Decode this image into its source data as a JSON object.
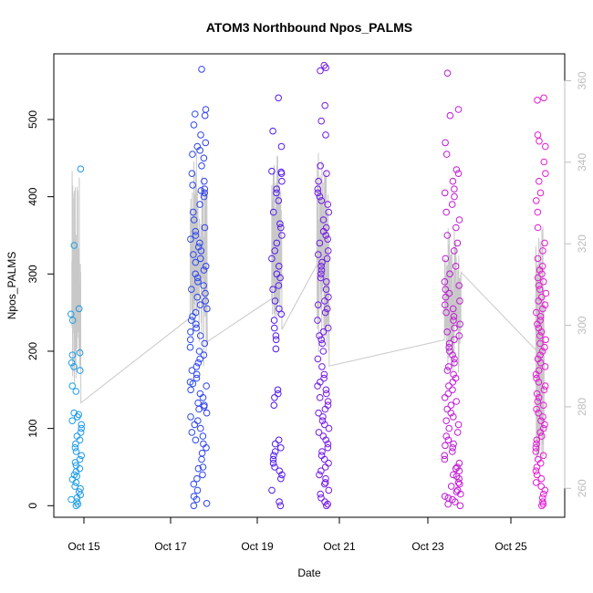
{
  "chart_data": {
    "type": "scatter",
    "title": "ATOM3 Northbound Npos_PALMS",
    "xlabel": "Date",
    "ylabel": "Npos_PALMS",
    "x_ticks": [
      "Oct 15",
      "Oct 17",
      "Oct 19",
      "Oct 21",
      "Oct 23",
      "Oct 25"
    ],
    "y_ticks": [
      0,
      100,
      200,
      300,
      400,
      500
    ],
    "ylim": [
      -15,
      585
    ],
    "y2_ticks": [
      260,
      280,
      300,
      320,
      340,
      360
    ],
    "y2lim": [
      252.9,
      366.6
    ],
    "grid": false,
    "colors": {
      "line": "#c8c8c8",
      "right_axis": "#bdbdbd",
      "axis": "#000000"
    },
    "point_color_gradient": [
      "#1a9fe8",
      "#1f5aee",
      "#4a1aee",
      "#8a1ae0",
      "#c21ad6",
      "#e61ad2"
    ],
    "point_clusters": [
      {
        "date": "Oct 14",
        "day_start": 14.7,
        "day_end": 14.95,
        "values": [
          0,
          2,
          5,
          8,
          10,
          14,
          18,
          22,
          25,
          30,
          34,
          38,
          40,
          44,
          48,
          52,
          56,
          60,
          65,
          70,
          75,
          80,
          85,
          90,
          95,
          100,
          105,
          110,
          115,
          118,
          120,
          148,
          155,
          175,
          180,
          185,
          195,
          198,
          240,
          248,
          255,
          337,
          436
        ]
      },
      {
        "date": "Oct 17",
        "day_start": 17.45,
        "day_end": 17.85,
        "values": [
          0,
          3,
          8,
          12,
          20,
          28,
          35,
          40,
          48,
          50,
          60,
          68,
          75,
          80,
          85,
          90,
          95,
          100,
          105,
          110,
          115,
          120,
          125,
          128,
          130,
          133,
          140,
          145,
          150,
          155,
          158,
          160,
          165,
          170,
          175,
          180,
          185,
          190,
          195,
          200,
          205,
          210,
          215,
          220,
          225,
          230,
          235,
          240,
          245,
          250,
          255,
          260,
          265,
          270,
          275,
          280,
          285,
          290,
          295,
          300,
          305,
          310,
          315,
          320,
          325,
          330,
          335,
          340,
          345,
          350,
          355,
          360,
          370,
          380,
          390,
          400,
          405,
          408,
          410,
          415,
          420,
          430,
          440,
          450,
          455,
          460,
          465,
          470,
          480,
          493,
          505,
          507,
          513,
          565
        ]
      },
      {
        "date": "Oct 19",
        "day_start": 19.35,
        "day_end": 19.6,
        "values": [
          0,
          5,
          20,
          35,
          40,
          45,
          50,
          55,
          60,
          65,
          70,
          75,
          80,
          85,
          130,
          140,
          145,
          150,
          203,
          215,
          220,
          230,
          240,
          248,
          255,
          265,
          280,
          285,
          295,
          300,
          310,
          320,
          330,
          340,
          350,
          360,
          365,
          380,
          395,
          405,
          410,
          420,
          430,
          432,
          433,
          465,
          485,
          528
        ]
      },
      {
        "date": "Oct 20",
        "day_start": 20.45,
        "day_end": 20.75,
        "values": [
          0,
          2,
          5,
          10,
          15,
          20,
          28,
          30,
          35,
          40,
          45,
          50,
          55,
          60,
          65,
          70,
          75,
          80,
          85,
          90,
          95,
          100,
          105,
          110,
          115,
          120,
          125,
          130,
          135,
          140,
          145,
          150,
          155,
          160,
          165,
          170,
          180,
          190,
          200,
          210,
          215,
          220,
          225,
          230,
          240,
          250,
          255,
          260,
          265,
          270,
          280,
          290,
          295,
          300,
          305,
          310,
          315,
          320,
          325,
          330,
          340,
          345,
          350,
          355,
          360,
          370,
          380,
          390,
          395,
          400,
          405,
          410,
          420,
          430,
          440,
          480,
          498,
          518,
          563,
          567,
          570
        ]
      },
      {
        "date": "Oct 23",
        "day_start": 23.4,
        "day_end": 23.8,
        "values": [
          0,
          2,
          5,
          8,
          10,
          12,
          15,
          18,
          20,
          25,
          28,
          30,
          35,
          38,
          40,
          45,
          48,
          50,
          55,
          60,
          65,
          70,
          75,
          78,
          80,
          85,
          90,
          95,
          100,
          105,
          110,
          115,
          120,
          125,
          130,
          135,
          140,
          145,
          150,
          155,
          160,
          165,
          170,
          175,
          180,
          185,
          190,
          195,
          200,
          205,
          210,
          215,
          220,
          225,
          230,
          235,
          240,
          245,
          250,
          255,
          260,
          265,
          270,
          275,
          280,
          285,
          290,
          300,
          310,
          320,
          330,
          340,
          350,
          360,
          370,
          380,
          390,
          400,
          405,
          410,
          420,
          430,
          435,
          455,
          470,
          505,
          513,
          560
        ]
      },
      {
        "date": "Oct 25",
        "day_start": 25.6,
        "day_end": 25.85,
        "values": [
          0,
          2,
          5,
          10,
          15,
          20,
          25,
          30,
          35,
          40,
          45,
          50,
          55,
          60,
          65,
          70,
          75,
          80,
          85,
          90,
          95,
          100,
          105,
          110,
          115,
          120,
          125,
          130,
          135,
          140,
          145,
          150,
          155,
          160,
          165,
          170,
          175,
          180,
          185,
          190,
          195,
          200,
          205,
          210,
          215,
          220,
          225,
          230,
          235,
          240,
          245,
          250,
          255,
          260,
          265,
          270,
          275,
          280,
          285,
          290,
          295,
          300,
          305,
          310,
          320,
          330,
          340,
          360,
          380,
          395,
          405,
          420,
          430,
          445,
          465,
          472,
          480,
          525,
          528
        ]
      }
    ],
    "line_series": {
      "axis": "right",
      "clusters": [
        {
          "day_start": 14.72,
          "day_end": 14.93,
          "min": 280,
          "max": 338,
          "end": 281
        },
        {
          "day_start": 17.45,
          "day_end": 17.85,
          "min": 287,
          "max": 343,
          "end": 296
        },
        {
          "day_start": 19.35,
          "day_end": 19.6,
          "min": 298,
          "max": 342,
          "end": 299
        },
        {
          "day_start": 20.45,
          "day_end": 20.75,
          "min": 290,
          "max": 343,
          "end": 290
        },
        {
          "day_start": 23.4,
          "day_end": 23.8,
          "min": 286,
          "max": 324,
          "end": 313
        },
        {
          "day_start": 25.6,
          "day_end": 25.8,
          "min": 262,
          "max": 327,
          "end": 293
        }
      ]
    }
  }
}
